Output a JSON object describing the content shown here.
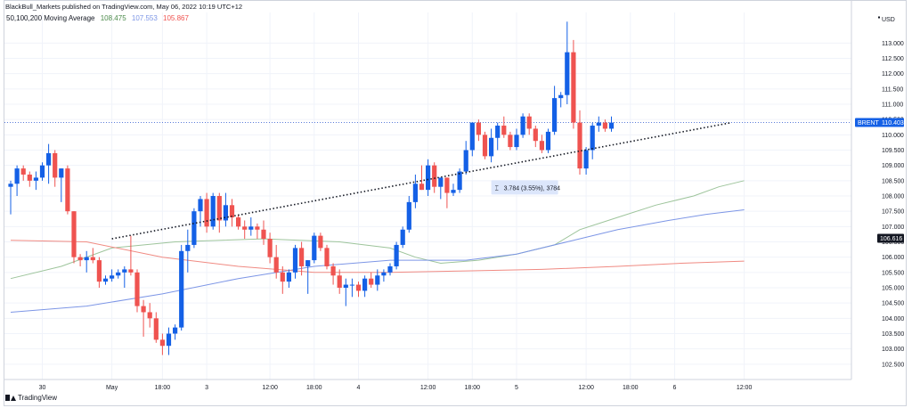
{
  "header": {
    "attribution": "BlackBull_Markets published on TradingView.com, May 06, 2022 10:19 UTC+12",
    "indicator_label": "50,100,200 Moving Average",
    "ma_values": [
      "108.475",
      "107.553",
      "105.867"
    ]
  },
  "branding": {
    "text": "TradingView"
  },
  "currency": "USD",
  "colors": {
    "up": "#1460e6",
    "down": "#ef5350",
    "ma50": "#9dc49b",
    "ma100": "#7d96e6",
    "ma200": "#f08a82",
    "price_line": "#5b7bd9",
    "trend_line": "#131722",
    "grid": "#f0f3fa"
  },
  "badges": [
    {
      "text": "BRENT",
      "value": "110.403",
      "bg": "#1460e6"
    },
    {
      "text": "",
      "value": "106.616",
      "bg": "#131722"
    }
  ],
  "measure": {
    "text": "3.784 (3.55%), 3784"
  },
  "chart_data": {
    "type": "candlestick",
    "ylim": [
      102.0,
      114.0
    ],
    "y_ticks": [
      "113.000",
      "112.500",
      "112.000",
      "111.500",
      "111.000",
      "110.500",
      "110.000",
      "109.500",
      "109.000",
      "108.500",
      "108.000",
      "107.500",
      "107.000",
      "106.500",
      "106.000",
      "105.500",
      "105.000",
      "104.500",
      "104.000",
      "103.500",
      "103.000",
      "102.500"
    ],
    "x_ticks": [
      {
        "label": "30",
        "i": 5
      },
      {
        "label": "May",
        "i": 16
      },
      {
        "label": "18:00",
        "i": 24
      },
      {
        "label": "3",
        "i": 31
      },
      {
        "label": "12:00",
        "i": 41
      },
      {
        "label": "18:00",
        "i": 48
      },
      {
        "label": "4",
        "i": 55
      },
      {
        "label": "12:00",
        "i": 66
      },
      {
        "label": "18:00",
        "i": 73
      },
      {
        "label": "5",
        "i": 80
      },
      {
        "label": "12:00",
        "i": 91
      },
      {
        "label": "18:00",
        "i": 98
      },
      {
        "label": "6",
        "i": 105
      },
      {
        "label": "12:00",
        "i": 116
      }
    ],
    "candles": [
      {
        "o": 108.3,
        "h": 108.5,
        "l": 107.4,
        "c": 108.4
      },
      {
        "o": 108.4,
        "h": 109.0,
        "l": 108.0,
        "c": 108.9
      },
      {
        "o": 108.9,
        "h": 109.0,
        "l": 108.5,
        "c": 108.7
      },
      {
        "o": 108.7,
        "h": 108.8,
        "l": 108.3,
        "c": 108.5
      },
      {
        "o": 108.5,
        "h": 108.8,
        "l": 108.2,
        "c": 108.6
      },
      {
        "o": 108.6,
        "h": 109.1,
        "l": 108.5,
        "c": 109.0
      },
      {
        "o": 109.0,
        "h": 109.7,
        "l": 108.4,
        "c": 109.4
      },
      {
        "o": 109.4,
        "h": 109.5,
        "l": 108.3,
        "c": 108.6
      },
      {
        "o": 108.6,
        "h": 108.9,
        "l": 107.8,
        "c": 108.9
      },
      {
        "o": 108.9,
        "h": 109.0,
        "l": 107.4,
        "c": 107.5
      },
      {
        "o": 107.5,
        "h": 107.5,
        "l": 105.8,
        "c": 106.0
      },
      {
        "o": 106.0,
        "h": 106.1,
        "l": 105.7,
        "c": 105.9
      },
      {
        "o": 105.9,
        "h": 106.2,
        "l": 105.5,
        "c": 106.0
      },
      {
        "o": 106.0,
        "h": 106.3,
        "l": 105.8,
        "c": 105.9
      },
      {
        "o": 105.9,
        "h": 106.0,
        "l": 105.0,
        "c": 105.2
      },
      {
        "o": 105.2,
        "h": 105.4,
        "l": 105.1,
        "c": 105.3
      },
      {
        "o": 105.3,
        "h": 105.6,
        "l": 105.2,
        "c": 105.4
      },
      {
        "o": 105.4,
        "h": 105.6,
        "l": 105.3,
        "c": 105.5
      },
      {
        "o": 105.5,
        "h": 105.7,
        "l": 105.0,
        "c": 105.6
      },
      {
        "o": 105.6,
        "h": 106.7,
        "l": 105.4,
        "c": 105.5
      },
      {
        "o": 105.5,
        "h": 105.6,
        "l": 104.2,
        "c": 104.4
      },
      {
        "o": 104.4,
        "h": 104.6,
        "l": 103.4,
        "c": 104.2
      },
      {
        "o": 104.2,
        "h": 104.5,
        "l": 103.7,
        "c": 104.0
      },
      {
        "o": 104.0,
        "h": 104.2,
        "l": 103.2,
        "c": 103.3
      },
      {
        "o": 103.3,
        "h": 103.5,
        "l": 102.8,
        "c": 103.1
      },
      {
        "o": 103.1,
        "h": 103.7,
        "l": 102.8,
        "c": 103.5
      },
      {
        "o": 103.5,
        "h": 103.8,
        "l": 103.3,
        "c": 103.7
      },
      {
        "o": 103.7,
        "h": 106.4,
        "l": 103.6,
        "c": 106.2
      },
      {
        "o": 106.2,
        "h": 106.9,
        "l": 105.5,
        "c": 106.4
      },
      {
        "o": 106.4,
        "h": 107.6,
        "l": 106.3,
        "c": 107.5
      },
      {
        "o": 107.5,
        "h": 108.0,
        "l": 107.0,
        "c": 107.9
      },
      {
        "o": 107.9,
        "h": 108.1,
        "l": 106.8,
        "c": 107.0
      },
      {
        "o": 107.0,
        "h": 108.1,
        "l": 106.9,
        "c": 108.0
      },
      {
        "o": 108.0,
        "h": 108.1,
        "l": 106.8,
        "c": 107.2
      },
      {
        "o": 107.2,
        "h": 108.1,
        "l": 107.0,
        "c": 107.7
      },
      {
        "o": 107.7,
        "h": 107.9,
        "l": 107.0,
        "c": 107.3
      },
      {
        "o": 107.3,
        "h": 107.4,
        "l": 106.9,
        "c": 107.0
      },
      {
        "o": 107.0,
        "h": 107.2,
        "l": 106.6,
        "c": 106.9
      },
      {
        "o": 106.9,
        "h": 107.3,
        "l": 106.7,
        "c": 107.0
      },
      {
        "o": 107.0,
        "h": 107.1,
        "l": 106.6,
        "c": 106.9
      },
      {
        "o": 106.9,
        "h": 107.2,
        "l": 106.4,
        "c": 106.6
      },
      {
        "o": 106.6,
        "h": 106.8,
        "l": 105.8,
        "c": 106.0
      },
      {
        "o": 106.0,
        "h": 106.4,
        "l": 105.3,
        "c": 105.5
      },
      {
        "o": 105.5,
        "h": 105.7,
        "l": 104.8,
        "c": 105.2
      },
      {
        "o": 105.2,
        "h": 105.6,
        "l": 105.0,
        "c": 105.5
      },
      {
        "o": 105.5,
        "h": 106.4,
        "l": 105.3,
        "c": 106.3
      },
      {
        "o": 106.3,
        "h": 106.5,
        "l": 105.4,
        "c": 105.7
      },
      {
        "o": 105.7,
        "h": 105.9,
        "l": 104.8,
        "c": 105.9
      },
      {
        "o": 105.9,
        "h": 106.8,
        "l": 105.8,
        "c": 106.7
      },
      {
        "o": 106.7,
        "h": 106.8,
        "l": 106.2,
        "c": 106.3
      },
      {
        "o": 106.3,
        "h": 106.4,
        "l": 105.6,
        "c": 105.7
      },
      {
        "o": 105.7,
        "h": 105.8,
        "l": 105.1,
        "c": 105.4
      },
      {
        "o": 105.4,
        "h": 105.6,
        "l": 104.8,
        "c": 105.0
      },
      {
        "o": 105.0,
        "h": 105.3,
        "l": 104.4,
        "c": 105.1
      },
      {
        "o": 105.1,
        "h": 105.3,
        "l": 104.7,
        "c": 105.1
      },
      {
        "o": 105.1,
        "h": 105.2,
        "l": 104.7,
        "c": 104.9
      },
      {
        "o": 104.9,
        "h": 105.4,
        "l": 104.7,
        "c": 105.3
      },
      {
        "o": 105.3,
        "h": 105.5,
        "l": 105.0,
        "c": 105.1
      },
      {
        "o": 105.1,
        "h": 105.6,
        "l": 104.9,
        "c": 105.4
      },
      {
        "o": 105.4,
        "h": 105.6,
        "l": 105.2,
        "c": 105.5
      },
      {
        "o": 105.5,
        "h": 105.8,
        "l": 105.4,
        "c": 105.7
      },
      {
        "o": 105.7,
        "h": 106.5,
        "l": 105.6,
        "c": 106.4
      },
      {
        "o": 106.4,
        "h": 107.0,
        "l": 106.3,
        "c": 106.9
      },
      {
        "o": 106.9,
        "h": 108.0,
        "l": 106.8,
        "c": 107.8
      },
      {
        "o": 107.8,
        "h": 108.7,
        "l": 107.6,
        "c": 108.4
      },
      {
        "o": 108.4,
        "h": 109.0,
        "l": 108.2,
        "c": 108.2
      },
      {
        "o": 108.2,
        "h": 109.2,
        "l": 108.0,
        "c": 109.0
      },
      {
        "o": 109.0,
        "h": 109.1,
        "l": 108.1,
        "c": 108.3
      },
      {
        "o": 108.3,
        "h": 108.6,
        "l": 107.9,
        "c": 108.6
      },
      {
        "o": 108.6,
        "h": 108.6,
        "l": 107.6,
        "c": 108.1
      },
      {
        "o": 108.1,
        "h": 108.4,
        "l": 108.0,
        "c": 108.2
      },
      {
        "o": 108.2,
        "h": 108.9,
        "l": 108.1,
        "c": 108.8
      },
      {
        "o": 108.8,
        "h": 109.8,
        "l": 108.7,
        "c": 109.5
      },
      {
        "o": 109.5,
        "h": 110.4,
        "l": 109.3,
        "c": 110.4
      },
      {
        "o": 110.4,
        "h": 110.5,
        "l": 109.8,
        "c": 110.0
      },
      {
        "o": 110.0,
        "h": 110.1,
        "l": 109.2,
        "c": 109.3
      },
      {
        "o": 109.3,
        "h": 110.2,
        "l": 109.1,
        "c": 109.9
      },
      {
        "o": 109.9,
        "h": 110.4,
        "l": 109.5,
        "c": 110.3
      },
      {
        "o": 110.3,
        "h": 110.6,
        "l": 109.9,
        "c": 110.0
      },
      {
        "o": 110.0,
        "h": 110.1,
        "l": 109.5,
        "c": 109.6
      },
      {
        "o": 109.6,
        "h": 110.2,
        "l": 109.5,
        "c": 110.0
      },
      {
        "o": 110.0,
        "h": 110.7,
        "l": 109.9,
        "c": 110.6
      },
      {
        "o": 110.6,
        "h": 110.7,
        "l": 110.0,
        "c": 110.2
      },
      {
        "o": 110.2,
        "h": 110.3,
        "l": 109.6,
        "c": 109.8
      },
      {
        "o": 109.8,
        "h": 110.0,
        "l": 109.4,
        "c": 109.5
      },
      {
        "o": 109.5,
        "h": 110.2,
        "l": 109.4,
        "c": 110.1
      },
      {
        "o": 110.1,
        "h": 111.6,
        "l": 110.0,
        "c": 111.2
      },
      {
        "o": 111.2,
        "h": 111.4,
        "l": 110.9,
        "c": 111.3
      },
      {
        "o": 111.3,
        "h": 113.7,
        "l": 111.0,
        "c": 112.7
      },
      {
        "o": 112.7,
        "h": 113.1,
        "l": 110.2,
        "c": 110.4
      },
      {
        "o": 110.4,
        "h": 110.8,
        "l": 108.7,
        "c": 108.9
      },
      {
        "o": 108.9,
        "h": 109.6,
        "l": 108.7,
        "c": 109.5
      },
      {
        "o": 109.5,
        "h": 110.4,
        "l": 109.2,
        "c": 110.3
      },
      {
        "o": 110.3,
        "h": 110.6,
        "l": 110.1,
        "c": 110.4
      },
      {
        "o": 110.4,
        "h": 110.5,
        "l": 110.1,
        "c": 110.2
      },
      {
        "o": 110.2,
        "h": 110.6,
        "l": 110.1,
        "c": 110.4
      }
    ],
    "ma_lines": [
      {
        "name": "MA 50",
        "color": "#9dc49b",
        "points": [
          [
            0,
            105.3
          ],
          [
            8,
            105.7
          ],
          [
            16,
            106.3
          ],
          [
            26,
            106.5
          ],
          [
            40,
            106.6
          ],
          [
            52,
            106.5
          ],
          [
            60,
            106.3
          ],
          [
            64,
            106.0
          ],
          [
            68,
            105.8
          ],
          [
            74,
            105.9
          ],
          [
            80,
            106.1
          ],
          [
            86,
            106.4
          ],
          [
            90,
            106.9
          ],
          [
            96,
            107.3
          ],
          [
            102,
            107.7
          ],
          [
            108,
            108.0
          ],
          [
            112,
            108.3
          ],
          [
            116,
            108.5
          ]
        ]
      },
      {
        "name": "MA 100",
        "color": "#7d96e6",
        "points": [
          [
            0,
            104.2
          ],
          [
            12,
            104.4
          ],
          [
            24,
            104.8
          ],
          [
            36,
            105.3
          ],
          [
            48,
            105.7
          ],
          [
            60,
            105.9
          ],
          [
            72,
            105.9
          ],
          [
            80,
            106.1
          ],
          [
            88,
            106.5
          ],
          [
            96,
            106.9
          ],
          [
            104,
            107.2
          ],
          [
            110,
            107.4
          ],
          [
            116,
            107.55
          ]
        ]
      },
      {
        "name": "MA 200",
        "color": "#f08a82",
        "points": [
          [
            0,
            106.55
          ],
          [
            12,
            106.5
          ],
          [
            24,
            106.0
          ],
          [
            36,
            105.7
          ],
          [
            48,
            105.5
          ],
          [
            60,
            105.5
          ],
          [
            72,
            105.55
          ],
          [
            84,
            105.6
          ],
          [
            96,
            105.7
          ],
          [
            106,
            105.8
          ],
          [
            116,
            105.87
          ]
        ]
      }
    ],
    "trend_line": {
      "from": [
        16,
        106.6
      ],
      "to": [
        114,
        110.4
      ]
    },
    "price_line": 110.403
  }
}
